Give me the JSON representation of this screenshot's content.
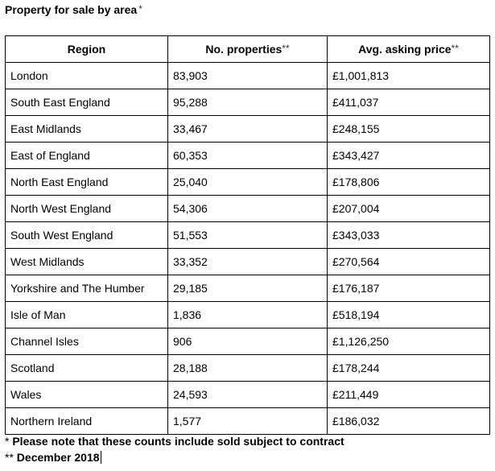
{
  "title": {
    "text": "Property for sale by area",
    "mark": "*"
  },
  "table": {
    "headers": [
      {
        "label": "Region",
        "mark": ""
      },
      {
        "label": "No. properties",
        "mark": "**"
      },
      {
        "label": "Avg. asking price",
        "mark": "**"
      }
    ],
    "rows": [
      {
        "region": "London",
        "count": "83,903",
        "price": "£1,001,813"
      },
      {
        "region": "South East England",
        "count": "95,288",
        "price": "£411,037"
      },
      {
        "region": "East Midlands",
        "count": "33,467",
        "price": "£248,155"
      },
      {
        "region": "East of England",
        "count": "60,353",
        "price": "£343,427"
      },
      {
        "region": "North East England",
        "count": "25,040",
        "price": "£178,806"
      },
      {
        "region": "North West England",
        "count": "54,306",
        "price": "£207,004"
      },
      {
        "region": "South West England",
        "count": "51,553",
        "price": "£343,033"
      },
      {
        "region": "West Midlands",
        "count": "33,352",
        "price": "£270,564"
      },
      {
        "region": "Yorkshire and The Humber",
        "count": "29,185",
        "price": "£176,187"
      },
      {
        "region": "Isle of Man",
        "count": "1,836",
        "price": "£518,194"
      },
      {
        "region": "Channel Isles",
        "count": "906",
        "price": "£1,126,250"
      },
      {
        "region": "Scotland",
        "count": "28,188",
        "price": "£178,244"
      },
      {
        "region": "Wales",
        "count": "24,593",
        "price": "£211,449"
      },
      {
        "region": "Northern Ireland",
        "count": "1,577",
        "price": "£186,032"
      }
    ]
  },
  "footnotes": [
    {
      "mark": "*",
      "text": "Please note that these counts include sold subject to contract"
    },
    {
      "mark": "**",
      "text": "December 2018"
    }
  ]
}
